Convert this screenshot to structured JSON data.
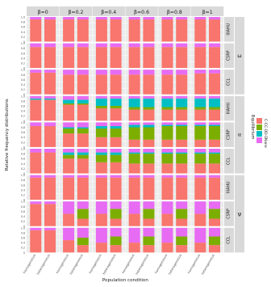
{
  "chart_data": {
    "type": "bar",
    "stacked": true,
    "facet_columns": [
      "β=0",
      "β=0.2",
      "β=0.4",
      "β=0.6",
      "β=0.8",
      "β=1"
    ],
    "facet_rows": [
      "IIIAHU",
      "CSRP",
      "CCL",
      "IIIAHU",
      "CSRP",
      "CCL",
      "IIIAHU",
      "CSRP",
      "CCL"
    ],
    "facet_groups": [
      "ω",
      "α",
      "ψ"
    ],
    "categories": [
      "homogeneous",
      "heterogeneous"
    ],
    "xlabel": "Population condition",
    "ylabel": "Relative frequency distributions",
    "yticks": [
      "0",
      "0.2",
      "0.4",
      "0.6",
      "0.8",
      "1.0"
    ],
    "ylim": [
      0,
      1
    ],
    "legend": {
      "title": "Equilibrium",
      "position": "right",
      "entries": [
        "C-C",
        "C-D",
        "D-D",
        "None"
      ]
    },
    "colors": {
      "C-C": "#F8766D",
      "C-D": "#7CAE00",
      "D-D": "#00BFC4",
      "None": "#E76BF3"
    },
    "panels": [
      [
        [
          [
            0.9,
            0,
            0,
            0.1
          ],
          [
            0.9,
            0,
            0,
            0.1
          ]
        ],
        [
          [
            0.9,
            0,
            0,
            0.1
          ],
          [
            0.9,
            0,
            0,
            0.1
          ]
        ],
        [
          [
            0.9,
            0,
            0,
            0.1
          ],
          [
            0.9,
            0,
            0,
            0.1
          ]
        ],
        [
          [
            0.9,
            0,
            0,
            0.1
          ],
          [
            0.9,
            0,
            0,
            0.1
          ]
        ],
        [
          [
            0.9,
            0,
            0,
            0.1
          ],
          [
            0.9,
            0,
            0,
            0.1
          ]
        ],
        [
          [
            0.9,
            0,
            0,
            0.1
          ],
          [
            0.9,
            0,
            0,
            0.1
          ]
        ]
      ],
      [
        [
          [
            0.85,
            0,
            0,
            0.15
          ],
          [
            0.85,
            0,
            0,
            0.15
          ]
        ],
        [
          [
            0.85,
            0,
            0,
            0.15
          ],
          [
            0.85,
            0,
            0,
            0.15
          ]
        ],
        [
          [
            0.85,
            0,
            0,
            0.15
          ],
          [
            0.85,
            0,
            0,
            0.15
          ]
        ],
        [
          [
            0.85,
            0,
            0,
            0.15
          ],
          [
            0.85,
            0,
            0,
            0.15
          ]
        ],
        [
          [
            0.85,
            0,
            0,
            0.15
          ],
          [
            0.85,
            0,
            0,
            0.15
          ]
        ],
        [
          [
            0.85,
            0,
            0,
            0.15
          ],
          [
            0.85,
            0,
            0,
            0.15
          ]
        ]
      ],
      [
        [
          [
            0.88,
            0,
            0,
            0.12
          ],
          [
            0.88,
            0,
            0,
            0.12
          ]
        ],
        [
          [
            0.8,
            0,
            0,
            0.2
          ],
          [
            0.8,
            0,
            0,
            0.2
          ]
        ],
        [
          [
            0.8,
            0,
            0,
            0.2
          ],
          [
            0.8,
            0,
            0,
            0.2
          ]
        ],
        [
          [
            0.8,
            0,
            0,
            0.2
          ],
          [
            0.8,
            0,
            0,
            0.2
          ]
        ],
        [
          [
            0.8,
            0,
            0,
            0.2
          ],
          [
            0.8,
            0,
            0,
            0.2
          ]
        ],
        [
          [
            0.85,
            0,
            0,
            0.15
          ],
          [
            0.85,
            0,
            0,
            0.15
          ]
        ]
      ],
      [
        [
          [
            0.85,
            0,
            0.05,
            0.1
          ],
          [
            0.85,
            0,
            0.05,
            0.1
          ]
        ],
        [
          [
            0.65,
            0.05,
            0.15,
            0.15
          ],
          [
            0.65,
            0.05,
            0.15,
            0.15
          ]
        ],
        [
          [
            0.5,
            0.1,
            0.3,
            0.1
          ],
          [
            0.5,
            0.1,
            0.3,
            0.1
          ]
        ],
        [
          [
            0.45,
            0.1,
            0.35,
            0.1
          ],
          [
            0.45,
            0.1,
            0.35,
            0.1
          ]
        ],
        [
          [
            0.45,
            0.1,
            0.35,
            0.1
          ],
          [
            0.45,
            0.1,
            0.35,
            0.1
          ]
        ],
        [
          [
            0.45,
            0.1,
            0.35,
            0.1
          ],
          [
            0.45,
            0.1,
            0.35,
            0.1
          ]
        ]
      ],
      [
        [
          [
            0.85,
            0,
            0,
            0.15
          ],
          [
            0.85,
            0,
            0,
            0.15
          ]
        ],
        [
          [
            0.55,
            0.2,
            0.05,
            0.2
          ],
          [
            0.55,
            0.2,
            0.05,
            0.2
          ]
        ],
        [
          [
            0.4,
            0.35,
            0.1,
            0.15
          ],
          [
            0.4,
            0.35,
            0.1,
            0.15
          ]
        ],
        [
          [
            0.3,
            0.5,
            0.1,
            0.1
          ],
          [
            0.3,
            0.5,
            0.1,
            0.1
          ]
        ],
        [
          [
            0.3,
            0.55,
            0.05,
            0.1
          ],
          [
            0.3,
            0.55,
            0.05,
            0.1
          ]
        ],
        [
          [
            0.3,
            0.55,
            0.05,
            0.1
          ],
          [
            0.3,
            0.55,
            0.05,
            0.1
          ]
        ]
      ],
      [
        [
          [
            0.85,
            0,
            0,
            0.15
          ],
          [
            0.85,
            0,
            0,
            0.15
          ]
        ],
        [
          [
            0.6,
            0.15,
            0.1,
            0.15
          ],
          [
            0.6,
            0.15,
            0.1,
            0.15
          ]
        ],
        [
          [
            0.45,
            0.3,
            0.1,
            0.15
          ],
          [
            0.45,
            0.3,
            0.1,
            0.15
          ]
        ],
        [
          [
            0.4,
            0.4,
            0.05,
            0.15
          ],
          [
            0.4,
            0.4,
            0.05,
            0.15
          ]
        ],
        [
          [
            0.4,
            0.4,
            0.05,
            0.15
          ],
          [
            0.4,
            0.4,
            0.05,
            0.15
          ]
        ],
        [
          [
            0.4,
            0.4,
            0.05,
            0.15
          ],
          [
            0.4,
            0.4,
            0.05,
            0.15
          ]
        ]
      ],
      [
        [
          [
            0.9,
            0,
            0,
            0.1
          ],
          [
            0.9,
            0,
            0,
            0.1
          ]
        ],
        [
          [
            0.9,
            0,
            0,
            0.1
          ],
          [
            0.9,
            0,
            0,
            0.1
          ]
        ],
        [
          [
            0.9,
            0,
            0,
            0.1
          ],
          [
            0.9,
            0,
            0,
            0.1
          ]
        ],
        [
          [
            0.9,
            0,
            0,
            0.1
          ],
          [
            0.9,
            0,
            0,
            0.1
          ]
        ],
        [
          [
            0.9,
            0,
            0,
            0.1
          ],
          [
            0.9,
            0,
            0,
            0.1
          ]
        ],
        [
          [
            0.9,
            0,
            0,
            0.1
          ],
          [
            0.9,
            0,
            0,
            0.1
          ]
        ]
      ],
      [
        [
          [
            0.9,
            0,
            0,
            0.1
          ],
          [
            0.9,
            0,
            0,
            0.1
          ]
        ],
        [
          [
            0.5,
            0,
            0,
            0.5
          ],
          [
            0.3,
            0.4,
            0,
            0.3
          ]
        ],
        [
          [
            0.5,
            0,
            0,
            0.5
          ],
          [
            0.3,
            0.4,
            0,
            0.3
          ]
        ],
        [
          [
            0.5,
            0,
            0,
            0.5
          ],
          [
            0.3,
            0.4,
            0,
            0.3
          ]
        ],
        [
          [
            0.5,
            0,
            0,
            0.5
          ],
          [
            0.3,
            0.4,
            0,
            0.3
          ]
        ],
        [
          [
            0.5,
            0,
            0,
            0.5
          ],
          [
            0.3,
            0.4,
            0,
            0.3
          ]
        ]
      ],
      [
        [
          [
            0.9,
            0,
            0,
            0.1
          ],
          [
            0.9,
            0,
            0,
            0.1
          ]
        ],
        [
          [
            0.5,
            0,
            0,
            0.5
          ],
          [
            0.3,
            0.3,
            0,
            0.4
          ]
        ],
        [
          [
            0.4,
            0,
            0,
            0.6
          ],
          [
            0.3,
            0.35,
            0,
            0.35
          ]
        ],
        [
          [
            0.4,
            0,
            0,
            0.6
          ],
          [
            0.3,
            0.35,
            0,
            0.35
          ]
        ],
        [
          [
            0.4,
            0,
            0,
            0.6
          ],
          [
            0.3,
            0.35,
            0,
            0.35
          ]
        ],
        [
          [
            0.4,
            0,
            0,
            0.6
          ],
          [
            0.3,
            0.35,
            0,
            0.35
          ]
        ]
      ]
    ]
  }
}
